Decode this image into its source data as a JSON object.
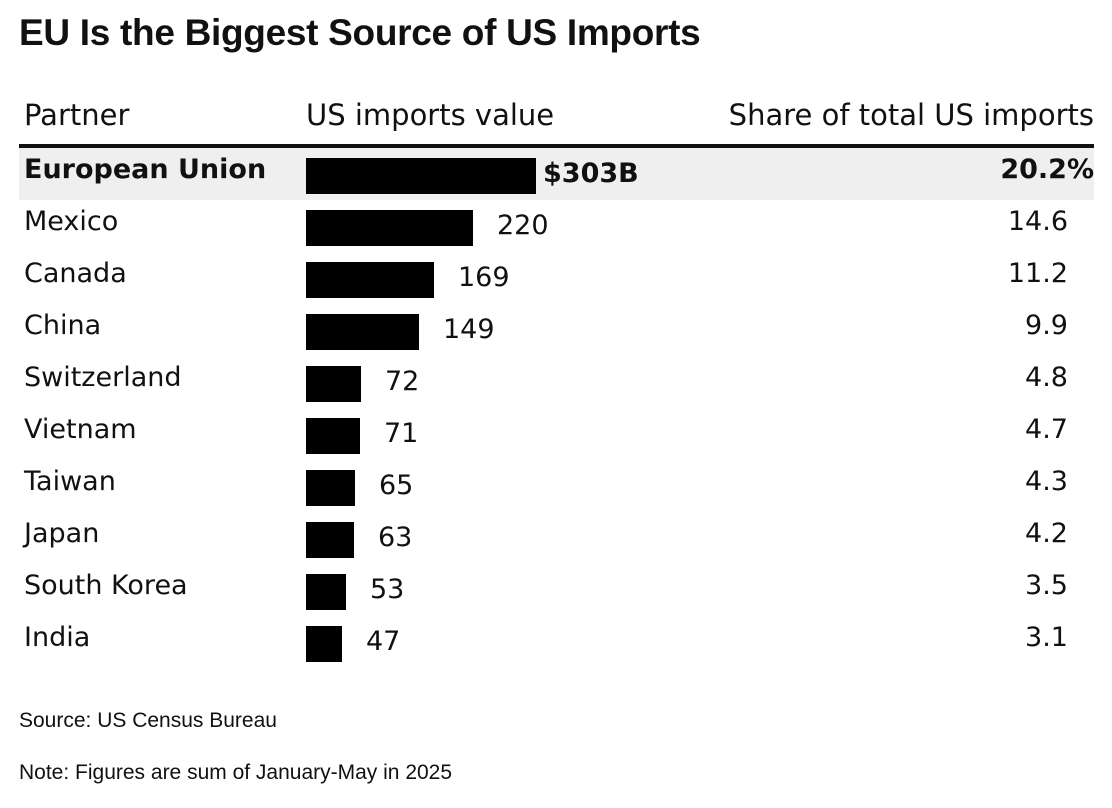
{
  "title": "EU Is the Biggest Source of US Imports",
  "headers": {
    "partner": "Partner",
    "value": "US imports value",
    "share": "Share of total US imports"
  },
  "footer": {
    "source": "Source: US Census Bureau",
    "note": "Note: Figures are sum of January-May in 2025"
  },
  "chart_data": {
    "type": "table",
    "title": "EU Is the Biggest Source of US Imports",
    "columns": [
      "Partner",
      "US imports value",
      "Share of total US imports"
    ],
    "rows": [
      {
        "partner": "European Union",
        "value": 303,
        "value_label": "$303B",
        "share_label": "20.2%",
        "share": 20.2
      },
      {
        "partner": "Mexico",
        "value": 220,
        "value_label": "220",
        "share_label": "14.6",
        "share": 14.6
      },
      {
        "partner": "Canada",
        "value": 169,
        "value_label": "169",
        "share_label": "11.2",
        "share": 11.2
      },
      {
        "partner": "China",
        "value": 149,
        "value_label": "149",
        "share_label": "9.9",
        "share": 9.9
      },
      {
        "partner": "Switzerland",
        "value": 72,
        "value_label": "72",
        "share_label": "4.8",
        "share": 4.8
      },
      {
        "partner": "Vietnam",
        "value": 71,
        "value_label": "71",
        "share_label": "4.7",
        "share": 4.7
      },
      {
        "partner": "Taiwan",
        "value": 65,
        "value_label": "65",
        "share_label": "4.3",
        "share": 4.3
      },
      {
        "partner": "Japan",
        "value": 63,
        "value_label": "63",
        "share_label": "4.2",
        "share": 4.2
      },
      {
        "partner": "South Korea",
        "value": 53,
        "value_label": "53",
        "share_label": "3.5",
        "share": 3.5
      },
      {
        "partner": "India",
        "value": 47,
        "value_label": "47",
        "share_label": "3.1",
        "share": 3.1
      }
    ],
    "value_unit": "billion USD",
    "bar_color": "#000000",
    "highlight_color": "#efefef"
  }
}
